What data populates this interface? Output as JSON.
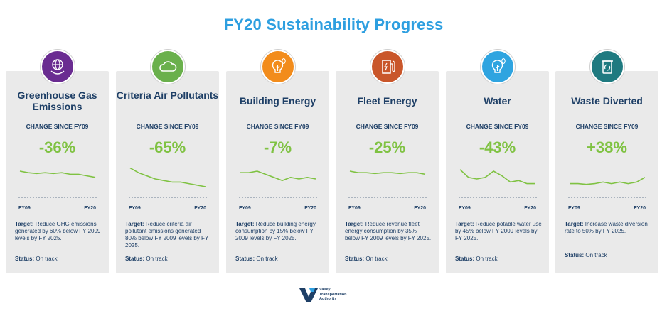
{
  "title": "FY20 Sustainability Progress",
  "change_label": "CHANGE SINCE FY09",
  "x_start": "FY09",
  "x_end": "FY20",
  "target_label": "Target:",
  "status_label": "Status:",
  "cards": [
    {
      "name": "Greenhouse Gas Emissions",
      "percent": "-36%",
      "target_text": " Reduce GHG emissions generated by 60% below FY 2009 levels by FY 2025.",
      "status": " On track",
      "icon": "globe-icon",
      "color": "#6a2c91",
      "trend": [
        15,
        14,
        13.5,
        14,
        13.5,
        14,
        13,
        13,
        12,
        11
      ]
    },
    {
      "name": "Criteria Air Pollutants",
      "percent": "-65%",
      "target_text": " Reduce criteria air pollutant emissions generated 80% below FY 2009 levels by FY 2025.",
      "status": " On track",
      "icon": "cloud-icon",
      "color": "#6ab04c",
      "trend": [
        17,
        14,
        12,
        10,
        9,
        8,
        8,
        7,
        6,
        5
      ]
    },
    {
      "name": "Building Energy",
      "percent": "-7%",
      "target_text": " Reduce building energy consumption by 15% below FY 2009 levels by FY 2025.",
      "status": " On track",
      "icon": "bulb-footprint-icon",
      "color": "#f28c1c",
      "trend": [
        14,
        14,
        15,
        13,
        11,
        9,
        11,
        10,
        11,
        10
      ]
    },
    {
      "name": "Fleet Energy",
      "percent": "-25%",
      "target_text": " Reduce revenue fleet energy consumption by 35% below FY 2009 levels by FY 2025.",
      "status": " On track",
      "icon": "fuel-pump-icon",
      "color": "#c9562a",
      "trend": [
        15,
        14,
        14,
        13.5,
        14,
        14,
        13.5,
        14,
        14,
        13
      ]
    },
    {
      "name": "Water",
      "percent": "-43%",
      "target_text": " Reduce potable water use by 45% below FY 2009 levels by FY 2025.",
      "status": " On track",
      "icon": "bulb-footprint-icon",
      "color": "#2fa4e0",
      "trend": [
        16,
        11,
        10,
        11,
        15,
        12,
        8,
        9,
        7,
        7
      ]
    },
    {
      "name": "Waste Diverted",
      "percent": "+38%",
      "target_text": " Increase waste diversion rate to 50% by FY 2025.",
      "status": " On track",
      "icon": "recycle-bin-icon",
      "color": "#1f7a80",
      "trend": [
        7,
        7,
        6.5,
        7,
        8,
        7,
        8,
        7,
        8,
        11
      ]
    }
  ],
  "logo": {
    "line1": "Valley",
    "line2": "Transportation",
    "line3": "Authority"
  }
}
